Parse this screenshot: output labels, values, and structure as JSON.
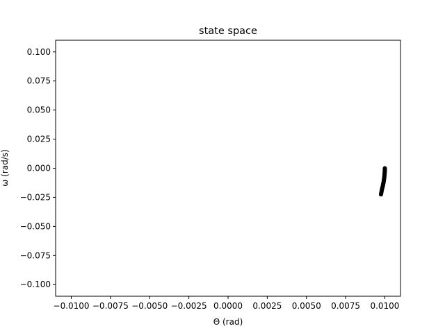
{
  "chart_data": {
    "type": "scatter",
    "title": "state space",
    "xlabel": "Θ (rad)",
    "ylabel": "ω (rad/s)",
    "xlim": [
      -0.011,
      0.011
    ],
    "ylim": [
      -0.11,
      0.11
    ],
    "x_ticks": [
      -0.01,
      -0.0075,
      -0.005,
      -0.0025,
      0.0,
      0.0025,
      0.005,
      0.0075,
      0.01
    ],
    "x_tick_labels": [
      "−0.0100",
      "−0.0075",
      "−0.0050",
      "−0.0025",
      "0.0000",
      "0.0025",
      "0.0050",
      "0.0075",
      "0.0100"
    ],
    "y_ticks": [
      0.1,
      0.075,
      0.05,
      0.025,
      0.0,
      -0.025,
      -0.05,
      -0.075,
      -0.1
    ],
    "y_tick_labels": [
      "0.100",
      "0.075",
      "0.050",
      "0.025",
      "0.000",
      "−0.025",
      "−0.050",
      "−0.075",
      "−0.100"
    ],
    "grid": false,
    "marker_color": "#000000",
    "series": [
      {
        "x": [
          0.01,
          0.009995,
          0.00998,
          0.009955,
          0.00992,
          0.009875,
          0.00982,
          0.009755
        ],
        "y": [
          0.0,
          -0.003,
          -0.006,
          -0.009,
          -0.012,
          -0.015,
          -0.018,
          -0.0225
        ]
      }
    ]
  }
}
